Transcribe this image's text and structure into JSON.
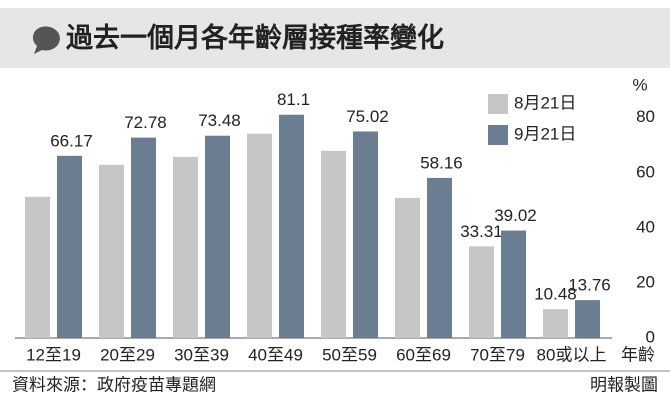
{
  "chart_data": {
    "type": "bar",
    "title": "過去一個月各年齡層接種率變化",
    "y_unit": "%",
    "x_label": "年齡",
    "source": "資料來源：政府疫苗專題網",
    "credit": "明報製圖",
    "categories": [
      "12至19",
      "20至29",
      "30至39",
      "40至49",
      "50至59",
      "60至69",
      "70至79",
      "80或以上"
    ],
    "series": [
      {
        "name": "8月21日",
        "color": "#c6c6c6",
        "label_color": "#333333",
        "values": [
          51.3,
          62.9,
          65.8,
          74.2,
          68.0,
          50.9,
          33.31,
          10.48
        ],
        "value_labels": [
          null,
          null,
          null,
          null,
          null,
          null,
          "33.31",
          "10.48"
        ]
      },
      {
        "name": "9月21日",
        "color": "#6a7d91",
        "label_color": "#5f7894",
        "values": [
          66.17,
          72.78,
          73.48,
          81.1,
          75.02,
          58.16,
          39.02,
          13.76
        ]
      }
    ],
    "ylim": [
      0,
      85
    ],
    "yticks": [
      0,
      20,
      40,
      60,
      80
    ],
    "legend": "upper right"
  }
}
